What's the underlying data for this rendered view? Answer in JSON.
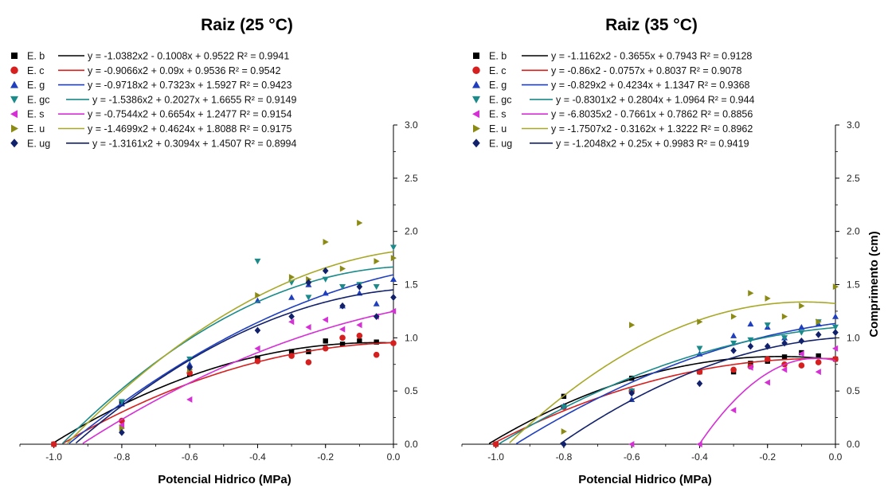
{
  "chart_data": [
    {
      "type": "scatter",
      "title": "Raiz (25 °C)",
      "xlabel": "Potencial Hidrico (MPa)",
      "ylabel": "",
      "xlim": [
        -1.1,
        0.0
      ],
      "ylim": [
        0.0,
        3.0
      ],
      "x_ticks": [
        "-1.0",
        "-0.8",
        "-0.6",
        "-0.4",
        "-0.2",
        "0.0"
      ],
      "y_ticks": [
        "0.0",
        "0.5",
        "1.0",
        "1.5",
        "2.0",
        "2.5",
        "3.0"
      ],
      "grid": false,
      "legend_position": "top-left",
      "series": [
        {
          "name": "E. b",
          "marker": "square",
          "color": "#000000",
          "fit_color": "#000000",
          "equation": "y = -1.0382x2 - 0.1008x + 0.9522 R² = 0.9941",
          "coef": [
            -1.0382,
            -0.1008,
            0.9522
          ],
          "x": [
            -1.0,
            -0.8,
            -0.6,
            -0.4,
            -0.3,
            -0.25,
            -0.2,
            -0.15,
            -0.1,
            -0.05
          ],
          "y": [
            0.0,
            0.39,
            0.66,
            0.81,
            0.87,
            0.87,
            0.97,
            0.94,
            0.97,
            0.96
          ]
        },
        {
          "name": "E. c",
          "marker": "circle",
          "color": "#d62020",
          "fit_color": "#d62020",
          "equation": "y = -0.9066x2 + 0.09x + 0.9536 R² = 0.9542",
          "coef": [
            -0.9066,
            0.09,
            0.9536
          ],
          "x": [
            -1.0,
            -0.8,
            -0.6,
            -0.4,
            -0.3,
            -0.25,
            -0.2,
            -0.15,
            -0.1,
            -0.05,
            0.0
          ],
          "y": [
            0.0,
            0.22,
            0.67,
            0.78,
            0.83,
            0.77,
            0.9,
            1.0,
            1.02,
            0.84,
            0.95
          ]
        },
        {
          "name": "E. g",
          "marker": "triangle-up",
          "color": "#1f3fbf",
          "fit_color": "#1f3fbf",
          "equation": "y = -0.9718x2 + 0.7323x + 1.5927 R² = 0.9423",
          "coef": [
            -0.9718,
            0.7323,
            1.5927
          ],
          "x": [
            -0.8,
            -0.6,
            -0.4,
            -0.3,
            -0.25,
            -0.2,
            -0.15,
            -0.1,
            -0.05,
            0.0
          ],
          "y": [
            0.38,
            0.75,
            1.35,
            1.38,
            1.5,
            1.42,
            1.3,
            1.42,
            1.32,
            1.55
          ]
        },
        {
          "name": "E. gc",
          "marker": "triangle-down",
          "color": "#1a8a8a",
          "fit_color": "#1a8a8a",
          "equation": "y = -1.5386x2 + 0.2027x + 1.6655 R² = 0.9149",
          "coef": [
            -1.5386,
            0.2027,
            1.6655
          ],
          "x": [
            -0.8,
            -0.6,
            -0.4,
            -0.3,
            -0.25,
            -0.2,
            -0.15,
            -0.1,
            -0.05,
            0.0
          ],
          "y": [
            0.4,
            0.8,
            1.72,
            1.52,
            1.38,
            1.55,
            1.48,
            1.5,
            1.48,
            1.85
          ]
        },
        {
          "name": "E. s",
          "marker": "triangle-left",
          "color": "#d62fd6",
          "fit_color": "#d62fd6",
          "equation": "y = -0.7544x2 + 0.6654x + 1.2477 R² = 0.9154",
          "coef": [
            -0.7544,
            0.6654,
            1.2477
          ],
          "x": [
            -0.8,
            -0.6,
            -0.4,
            -0.3,
            -0.25,
            -0.2,
            -0.15,
            -0.1,
            -0.05,
            0.0
          ],
          "y": [
            0.18,
            0.42,
            0.9,
            1.15,
            1.1,
            1.17,
            1.08,
            1.12,
            1.2,
            1.25
          ]
        },
        {
          "name": "E. u",
          "marker": "triangle-right",
          "color": "#8a8a14",
          "fit_color": "#a8a828",
          "equation": "y = -1.4699x2 + 0.4624x + 1.8088 R² = 0.9175",
          "coef": [
            -1.4699,
            0.4624,
            1.8088
          ],
          "x": [
            -0.8,
            -0.6,
            -0.4,
            -0.3,
            -0.25,
            -0.2,
            -0.15,
            -0.1,
            -0.05,
            0.0
          ],
          "y": [
            0.15,
            0.7,
            1.4,
            1.57,
            1.55,
            1.9,
            1.65,
            2.08,
            1.72,
            1.75
          ]
        },
        {
          "name": "E. ug",
          "marker": "diamond",
          "color": "#12216b",
          "fit_color": "#12216b",
          "equation": "y = -1.3161x2 + 0.3094x + 1.4507 R² = 0.8994",
          "coef": [
            -1.3161,
            0.3094,
            1.4507
          ],
          "x": [
            -0.8,
            -0.6,
            -0.4,
            -0.3,
            -0.25,
            -0.2,
            -0.15,
            -0.1,
            -0.05,
            0.0
          ],
          "y": [
            0.11,
            0.72,
            1.07,
            1.2,
            1.52,
            1.63,
            1.3,
            1.48,
            1.2,
            1.38
          ]
        }
      ]
    },
    {
      "type": "scatter",
      "title": "Raiz (35 °C)",
      "xlabel": "Potencial Hidrico (MPa)",
      "ylabel": "Comprimento (cm)",
      "xlim": [
        -1.1,
        0.0
      ],
      "ylim": [
        0.0,
        3.0
      ],
      "x_ticks": [
        "-1.0",
        "-0.8",
        "-0.6",
        "-0.4",
        "-0.2",
        "0.0"
      ],
      "y_ticks": [
        "0.0",
        "0.5",
        "1.0",
        "1.5",
        "2.0",
        "2.5",
        "3.0"
      ],
      "grid": false,
      "legend_position": "top-left",
      "series": [
        {
          "name": "E. b",
          "marker": "square",
          "color": "#000000",
          "fit_color": "#000000",
          "equation": "y = -1.1162x2 - 0.3655x + 0.7943 R² = 0.9128",
          "coef": [
            -1.1162,
            -0.3655,
            0.7943
          ],
          "x": [
            -1.0,
            -0.8,
            -0.6,
            -0.4,
            -0.3,
            -0.25,
            -0.2,
            -0.15,
            -0.1,
            -0.05,
            0.0
          ],
          "y": [
            0.0,
            0.45,
            0.62,
            0.68,
            0.68,
            0.76,
            0.78,
            0.82,
            0.86,
            0.83,
            0.8
          ]
        },
        {
          "name": "E. c",
          "marker": "circle",
          "color": "#d62020",
          "fit_color": "#d62020",
          "equation": "y = -0.86x2 - 0.0757x + 0.8037 R² = 0.9078",
          "coef": [
            -0.86,
            -0.0757,
            0.8037
          ],
          "x": [
            -1.0,
            -0.8,
            -0.6,
            -0.4,
            -0.3,
            -0.25,
            -0.2,
            -0.15,
            -0.1,
            -0.05,
            0.0
          ],
          "y": [
            0.0,
            0.35,
            0.5,
            0.68,
            0.7,
            0.73,
            0.8,
            0.75,
            0.74,
            0.77,
            0.8
          ]
        },
        {
          "name": "E. g",
          "marker": "triangle-up",
          "color": "#1f3fbf",
          "fit_color": "#1f3fbf",
          "equation": "y = -0.829x2 + 0.4234x + 1.1347 R² = 0.9368",
          "coef": [
            -0.829,
            0.4234,
            1.1347
          ],
          "x": [
            -0.8,
            -0.6,
            -0.4,
            -0.3,
            -0.25,
            -0.2,
            -0.15,
            -0.1,
            -0.05,
            0.0
          ],
          "y": [
            0.36,
            0.42,
            0.85,
            1.02,
            1.13,
            1.1,
            1.0,
            1.1,
            1.13,
            1.2
          ]
        },
        {
          "name": "E. gc",
          "marker": "triangle-down",
          "color": "#1a8a8a",
          "fit_color": "#1a8a8a",
          "equation": "y = -0.8301x2 + 0.2804x + 1.0964 R² = 0.944",
          "coef": [
            -0.8301,
            0.2804,
            1.0964
          ],
          "x": [
            -0.8,
            -0.6,
            -0.4,
            -0.3,
            -0.25,
            -0.2,
            -0.15,
            -0.1,
            -0.05,
            0.0
          ],
          "y": [
            0.35,
            0.5,
            0.9,
            0.95,
            0.98,
            1.12,
            1.0,
            1.05,
            1.15,
            1.1
          ]
        },
        {
          "name": "E. s",
          "marker": "triangle-left",
          "color": "#d62fd6",
          "fit_color": "#d62fd6",
          "equation": "y = -6.8035x2 - 0.7661x + 0.7862 R² = 0.8856",
          "coef": [
            -6.8035,
            -0.7661,
            0.7862
          ],
          "x": [
            -0.6,
            -0.4,
            -0.3,
            -0.25,
            -0.2,
            -0.15,
            -0.1,
            -0.05,
            0.0
          ],
          "y": [
            0.0,
            0.0,
            0.32,
            0.72,
            0.58,
            0.7,
            0.85,
            0.68,
            0.9
          ]
        },
        {
          "name": "E. u",
          "marker": "triangle-right",
          "color": "#8a8a14",
          "fit_color": "#a8a828",
          "equation": "y = -1.7507x2 - 0.3162x + 1.3222 R² = 0.8962",
          "coef": [
            -1.7507,
            -0.3162,
            1.3222
          ],
          "x": [
            -0.8,
            -0.6,
            -0.4,
            -0.3,
            -0.25,
            -0.2,
            -0.15,
            -0.1,
            -0.05,
            0.0
          ],
          "y": [
            0.12,
            1.12,
            1.15,
            1.2,
            1.42,
            1.37,
            1.2,
            1.3,
            1.15,
            1.48
          ]
        },
        {
          "name": "E. ug",
          "marker": "diamond",
          "color": "#12216b",
          "fit_color": "#12216b",
          "equation": "y = -1.2048x2 + 0.25x + 0.9983 R² = 0.9419",
          "coef": [
            -1.2048,
            0.25,
            0.9983
          ],
          "x": [
            -0.8,
            -0.6,
            -0.4,
            -0.3,
            -0.25,
            -0.2,
            -0.15,
            -0.1,
            -0.05,
            0.0
          ],
          "y": [
            0.0,
            0.48,
            0.57,
            0.88,
            0.92,
            0.92,
            0.95,
            0.97,
            1.03,
            1.05
          ]
        }
      ]
    }
  ]
}
